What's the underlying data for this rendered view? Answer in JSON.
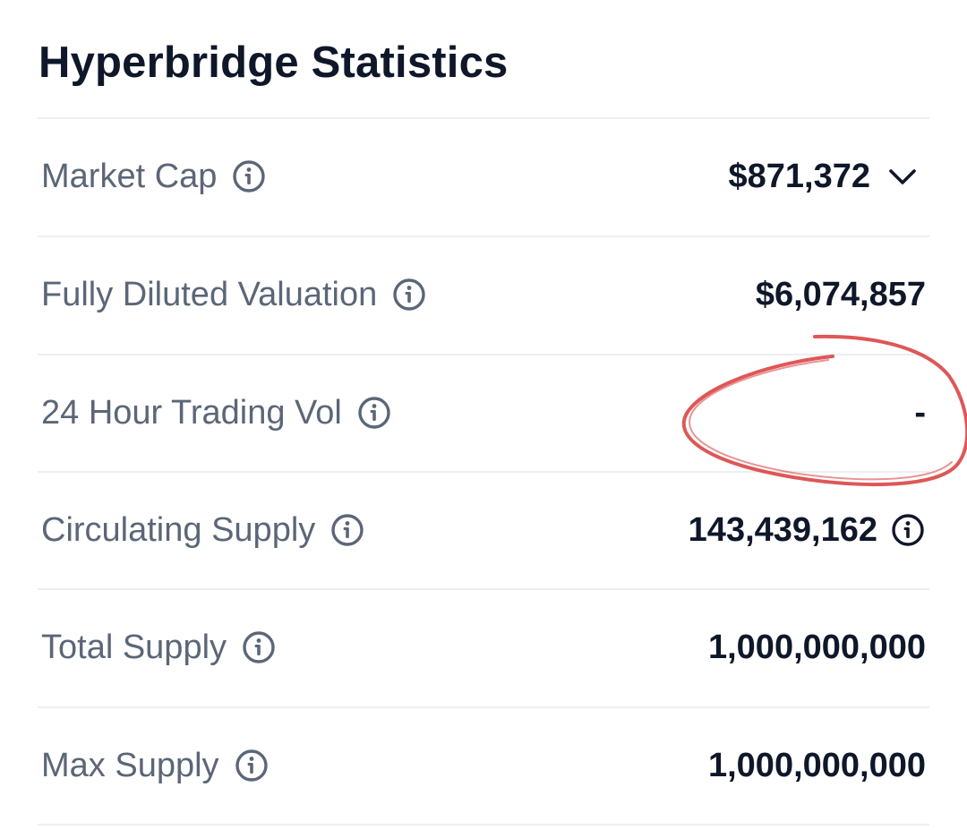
{
  "title": "Hyperbridge Statistics",
  "accent_colors": {
    "title_text": "#0f172a",
    "label_text": "#5b6677",
    "value_text": "#0f172a",
    "divider": "#edeef1",
    "annotation_circle": "#d83a3a"
  },
  "stats": [
    {
      "label": "Market Cap",
      "value": "$871,372",
      "icon": "info-icon",
      "value_action": "chevron-down-icon"
    },
    {
      "label": "Fully Diluted Valuation",
      "value": "$6,074,857",
      "icon": "info-icon"
    },
    {
      "label": "24 Hour Trading Vol",
      "value": "-",
      "icon": "info-icon"
    },
    {
      "label": "Circulating Supply",
      "value": "143,439,162",
      "icon": "info-icon",
      "value_action": "info-icon"
    },
    {
      "label": "Total Supply",
      "value": "1,000,000,000",
      "icon": "info-icon"
    },
    {
      "label": "Max Supply",
      "value": "1,000,000,000",
      "icon": "info-icon"
    }
  ]
}
